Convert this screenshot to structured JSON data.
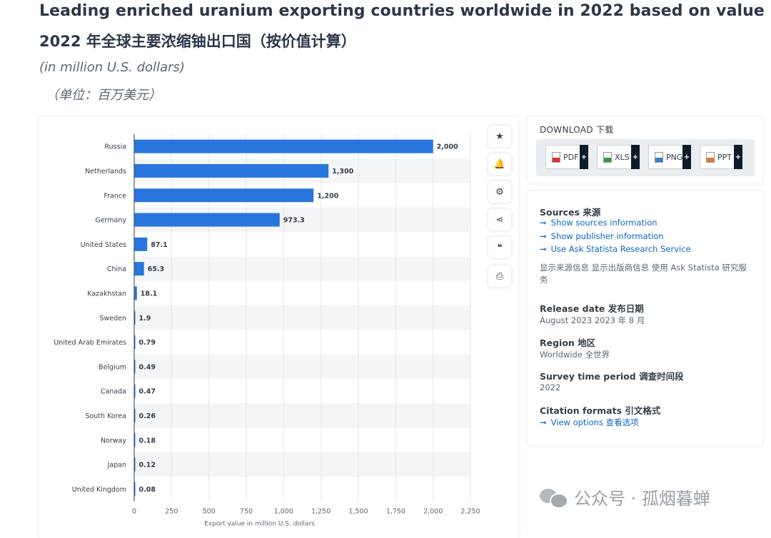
{
  "title_en": "Leading enriched uranium exporting countries worldwide in 2022 based on value",
  "title_cn": "2022 年全球主要浓缩铀出口国（按价值计算）",
  "unit_en": "(in million U.S. dollars)",
  "unit_cn": "（单位：百万美元）",
  "chart_data": {
    "type": "bar",
    "orientation": "horizontal",
    "title": "Leading enriched uranium exporting countries worldwide in 2022 based on value",
    "xlabel": "Export value in million U.S. dollars",
    "ylabel": "",
    "xlim": [
      0,
      2250
    ],
    "ticks": [
      "0",
      "250",
      "500",
      "750",
      "1,000",
      "1,250",
      "1,500",
      "1,750",
      "2,000",
      "2,250"
    ],
    "tick_values": [
      0,
      250,
      500,
      750,
      1000,
      1250,
      1500,
      1750,
      2000,
      2250
    ],
    "categories": [
      "Russia",
      "Netherlands",
      "France",
      "Germany",
      "United States",
      "China",
      "Kazakhstan",
      "Sweden",
      "United Arab Emirates",
      "Belgium",
      "Canada",
      "South Korea",
      "Norway",
      "Japan",
      "United Kingdom"
    ],
    "values": [
      2000,
      1300,
      1200,
      973.3,
      87.1,
      65.3,
      18.1,
      1.9,
      0.79,
      0.49,
      0.47,
      0.26,
      0.18,
      0.12,
      0.08
    ],
    "value_labels": [
      "2,000",
      "1,300",
      "1,200",
      "973.3",
      "87.1",
      "65.3",
      "18.1",
      "1.9",
      "0.79",
      "0.49",
      "0.47",
      "0.26",
      "0.18",
      "0.12",
      "0.08"
    ],
    "bar_color": "#2876dd",
    "grid": true
  },
  "toolbar": {
    "buttons": [
      {
        "name": "star-icon",
        "glyph": "★"
      },
      {
        "name": "bell-icon",
        "glyph": "🔔"
      },
      {
        "name": "gear-icon",
        "glyph": "⚙"
      },
      {
        "name": "share-icon",
        "glyph": "⋖"
      },
      {
        "name": "quote-icon",
        "glyph": "❝"
      },
      {
        "name": "print-icon",
        "glyph": "⎙"
      }
    ]
  },
  "download": {
    "title": "DOWNLOAD 下载",
    "buttons": [
      {
        "label": "PDF",
        "color": "#d9302f"
      },
      {
        "label": "XLS",
        "color": "#2f9b45"
      },
      {
        "label": "PNG",
        "color": "#3b7fc4"
      },
      {
        "label": "PPT",
        "color": "#e07a2e"
      }
    ],
    "plus": "+"
  },
  "info": {
    "sources_head": "Sources 来源",
    "links": [
      "Show sources information",
      "Show publisher information",
      "Use Ask Statista Research Service"
    ],
    "note": "显示来源信息 显示出版商信息 使用 Ask Statista 研究服务",
    "release_head": "Release date  发布日期",
    "release_val": "August 2023  2023 年 8 月",
    "region_head": "Region  地区",
    "region_val": "Worldwide  全世界",
    "survey_head": "Survey time period 调查时间段",
    "survey_val": "2022",
    "citation_head": "Citation formats  引文格式",
    "citation_link": "View options   查看选项",
    "arrow": "➞"
  },
  "watermark": "公众号 · 孤烟暮蝉"
}
